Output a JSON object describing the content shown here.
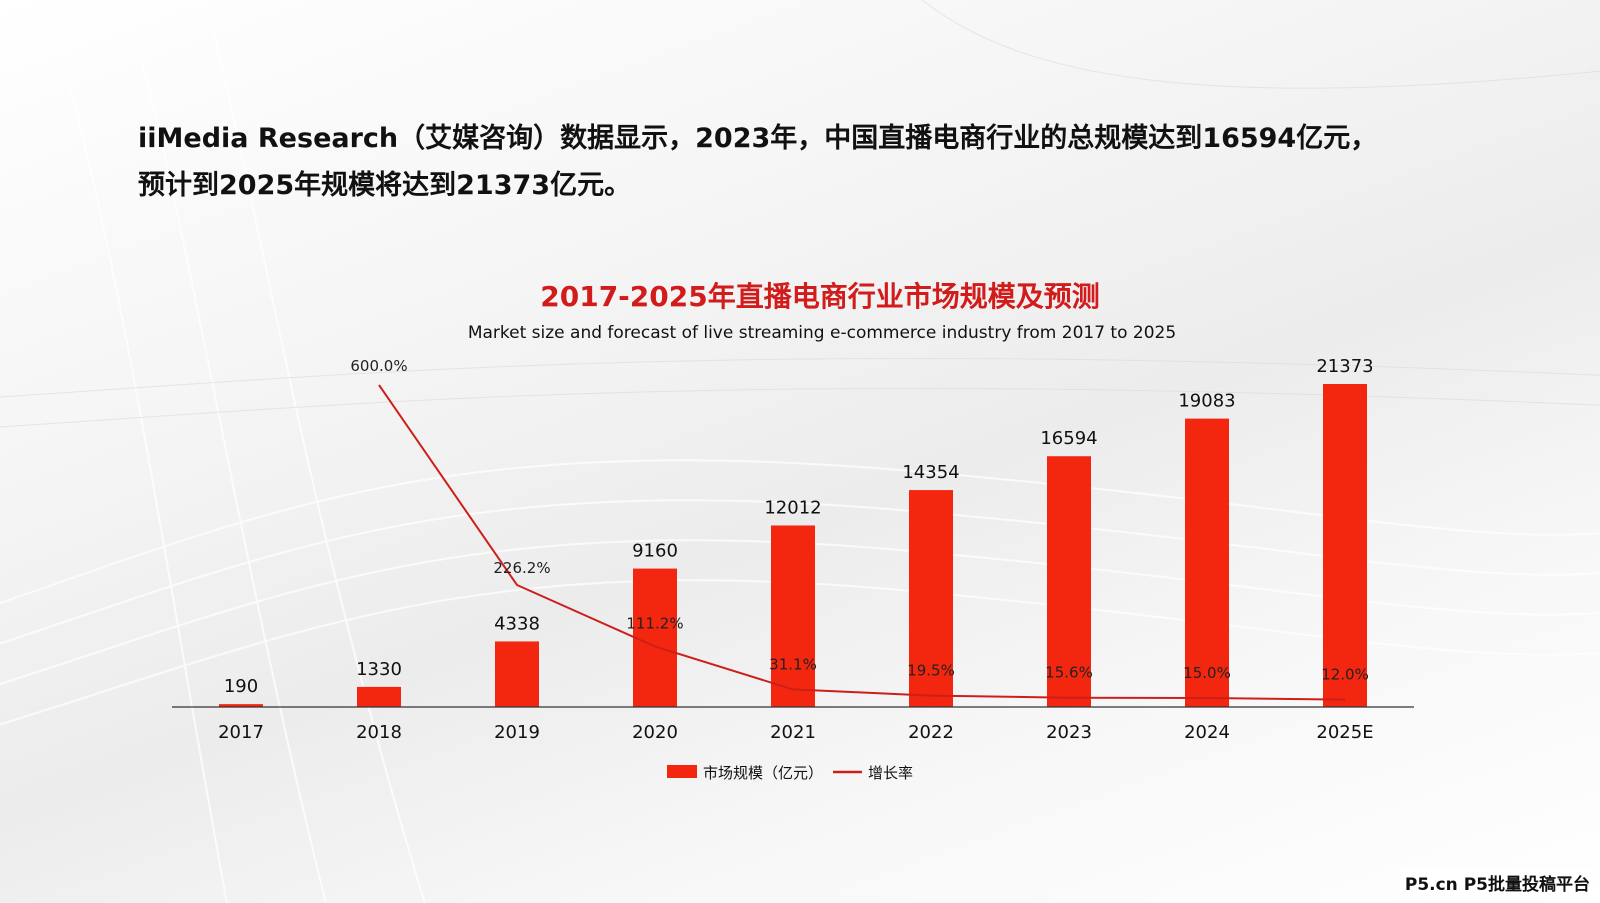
{
  "intro": {
    "line1": "iiMedia Research（艾媒咨询）数据显示，2023年，中国直播电商行业的总规模达到16594亿元，",
    "line2": "预计到2025年规模将达到21373亿元。"
  },
  "chart_data": {
    "type": "bar",
    "title": "2017-2025年直播电商行业市场规模及预测",
    "subtitle": "Market size and forecast of live streaming e-commerce industry from 2017 to 2025",
    "categories": [
      "2017",
      "2018",
      "2019",
      "2020",
      "2021",
      "2022",
      "2023",
      "2024",
      "2025E"
    ],
    "series": [
      {
        "name": "市场规模（亿元）",
        "kind": "bar",
        "values": [
          190,
          1330,
          4338,
          9160,
          12012,
          14354,
          16594,
          19083,
          21373
        ],
        "labels": [
          "190",
          "1330",
          "4338",
          "9160",
          "12012",
          "14354",
          "16594",
          "19083",
          "21373"
        ],
        "color": "#f3270f"
      },
      {
        "name": "增长率",
        "kind": "line",
        "values": [
          null,
          600.0,
          226.2,
          111.2,
          31.1,
          19.5,
          15.6,
          15.0,
          12.0
        ],
        "labels": [
          "",
          "600.0%",
          "226.2%",
          "111.2%",
          "31.1%",
          "19.5%",
          "15.6%",
          "15.0%",
          "12.0%"
        ],
        "color": "#cc1f1a"
      }
    ],
    "ylim_bar": [
      0,
      21373
    ],
    "ylim_line": [
      0,
      600
    ],
    "legend": "bottom-center",
    "grid": false
  },
  "colors": {
    "title": "#d21b1b",
    "bar": "#f3270f",
    "line": "#cc1f1a",
    "axis": "#333333",
    "text": "#111111"
  },
  "watermark": "P5.cn P5批量投稿平台"
}
